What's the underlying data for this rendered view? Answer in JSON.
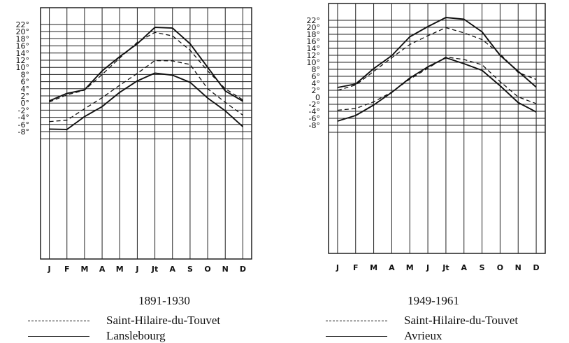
{
  "chart_data": [
    {
      "type": "line",
      "title": "1891-1930",
      "categories": [
        "J",
        "F",
        "M",
        "A",
        "M",
        "J",
        "Jt",
        "A",
        "S",
        "O",
        "N",
        "D"
      ],
      "y_ticks": [
        "22°",
        "20°",
        "18°",
        "16°",
        "14°",
        "12°",
        "10°",
        "8°",
        "6°",
        "4°",
        "2°",
        "0°",
        "-2°",
        "-4°",
        "-6°",
        "-8°"
      ],
      "ylim": [
        -9,
        23
      ],
      "grid": true,
      "legend": "bottom",
      "series": [
        {
          "name": "Saint-Hilaire-du-Touvet",
          "style": "dashed",
          "values": [
            0.3,
            2.3,
            3.6,
            8.0,
            12.6,
            17.0,
            19.8,
            18.8,
            14.8,
            9.0,
            4.0,
            0.9
          ]
        },
        {
          "name": "Saint-Hilaire-du-Touvet",
          "style": "dashed",
          "values": [
            -5.2,
            -4.8,
            -1.6,
            1.5,
            5.0,
            8.3,
            11.9,
            11.8,
            10.8,
            4.0,
            0.2,
            -3.4
          ]
        },
        {
          "name": "Lanslebourg",
          "style": "solid",
          "values": [
            0.6,
            2.7,
            3.7,
            9.0,
            13.0,
            16.6,
            21.2,
            21.0,
            16.6,
            10.0,
            3.4,
            0.5
          ]
        },
        {
          "name": "Lanslebourg",
          "style": "solid",
          "values": [
            -7.3,
            -7.4,
            -3.8,
            -1.0,
            3.0,
            6.2,
            8.4,
            7.8,
            5.8,
            1.4,
            -2.2,
            -6.6
          ]
        }
      ]
    },
    {
      "type": "line",
      "title": "1949-1961",
      "categories": [
        "J",
        "F",
        "M",
        "A",
        "M",
        "J",
        "Jt",
        "A",
        "S",
        "O",
        "N",
        "D"
      ],
      "y_ticks": [
        "22°",
        "20°",
        "18°",
        "16°",
        "14°",
        "12°",
        "10°",
        "8°",
        "6°",
        "4°",
        "2°",
        "0",
        "-2°",
        "-4°",
        "-6°",
        "-8°"
      ],
      "ylim": [
        -9,
        23
      ],
      "grid": true,
      "legend": "bottom",
      "series": [
        {
          "name": "Saint-Hilaire-du-Touvet",
          "style": "dashed",
          "values": [
            2.0,
            3.5,
            7.4,
            11.3,
            15.1,
            17.6,
            19.9,
            18.4,
            16.5,
            12.4,
            7.1,
            5.1
          ]
        },
        {
          "name": "Saint-Hilaire-du-Touvet",
          "style": "dashed",
          "values": [
            -3.7,
            -3.2,
            -1.3,
            1.5,
            5.2,
            8.3,
            11.5,
            10.8,
            9.3,
            4.5,
            0.1,
            -1.8
          ]
        },
        {
          "name": "Avrieux",
          "style": "solid",
          "values": [
            2.8,
            3.8,
            8.2,
            11.9,
            17.3,
            20.2,
            22.8,
            22.3,
            18.7,
            12.0,
            7.4,
            2.9
          ]
        },
        {
          "name": "Avrieux",
          "style": "solid",
          "values": [
            -6.8,
            -5.2,
            -2.2,
            1.4,
            5.5,
            8.7,
            11.3,
            9.6,
            7.7,
            3.3,
            -1.5,
            -4.2
          ]
        }
      ]
    }
  ],
  "legends": [
    {
      "dashed_label": "Saint-Hilaire-du-Touvet",
      "solid_label": "Lanslebourg"
    },
    {
      "dashed_label": "Saint-Hilaire-du-Touvet",
      "solid_label": "Avrieux"
    }
  ]
}
